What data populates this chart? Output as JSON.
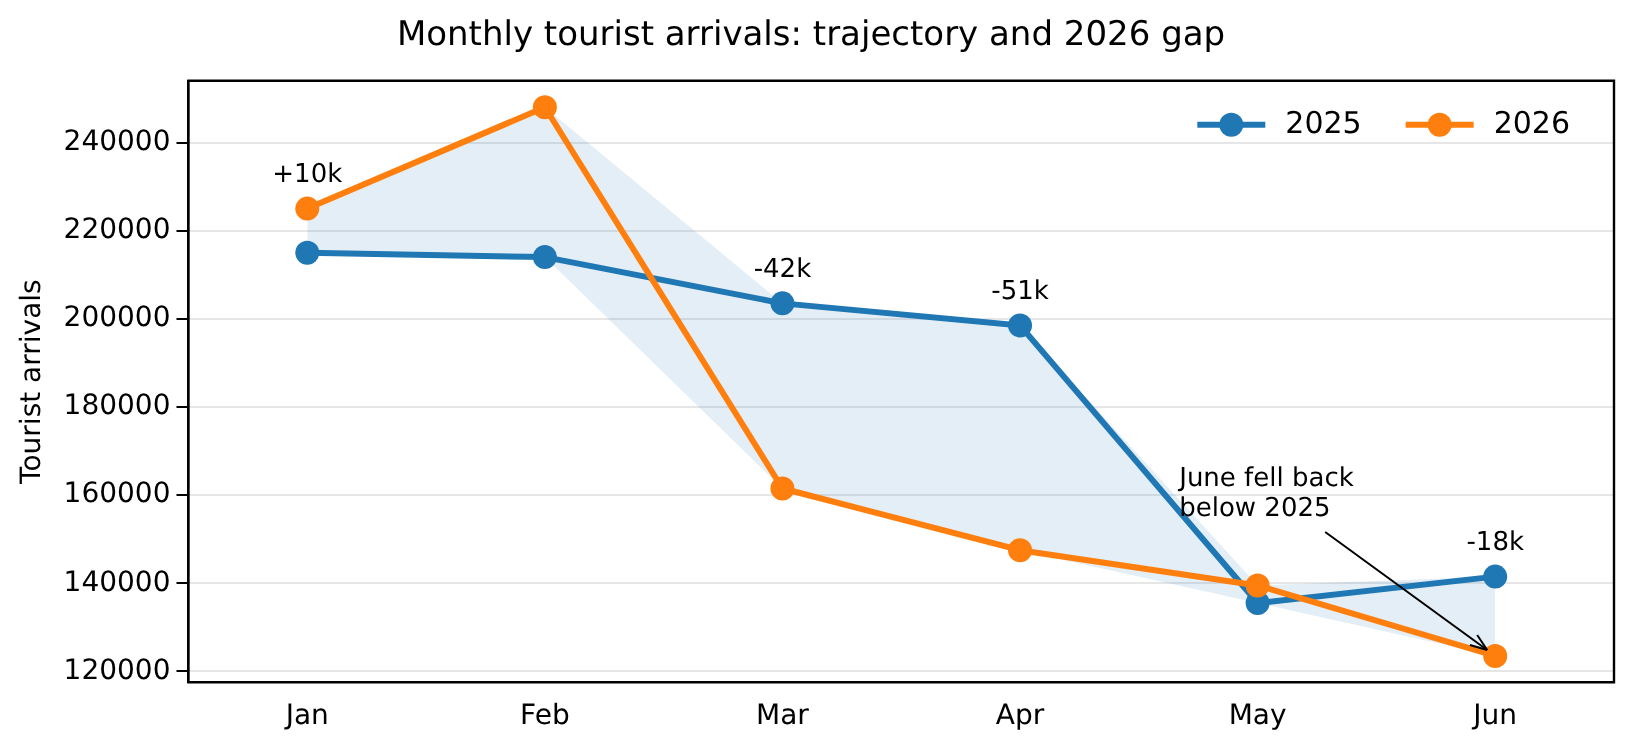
{
  "chart_data": {
    "type": "line",
    "title": "Monthly tourist arrivals: trajectory and 2026 gap",
    "ylabel": "Tourist arrivals",
    "categories": [
      "Jan",
      "Feb",
      "Mar",
      "Apr",
      "May",
      "Jun"
    ],
    "series": [
      {
        "name": "2025",
        "color": "#1f77b4",
        "values": [
          215000,
          214000,
          203500,
          198500,
          135500,
          141500
        ],
        "lower": [
          215000,
          214000,
          161500,
          147500,
          135500,
          123500
        ],
        "upper": [
          225000,
          248000,
          203500,
          198500,
          139500,
          141500
        ]
      },
      {
        "name": "2026",
        "color": "#ff7f0e",
        "values": [
          225000,
          248000,
          161500,
          147500,
          139500,
          123500
        ]
      }
    ],
    "ylim": [
      117500,
      254000
    ],
    "yticks": [
      120000,
      140000,
      160000,
      180000,
      200000,
      220000,
      240000
    ],
    "grid": "y",
    "legend": "top right",
    "marker": "circle",
    "line_style": "solid",
    "annotations": [
      {
        "text": "+10k",
        "x": "Jan",
        "y": 225000
      },
      {
        "text": "-42k",
        "x": "Mar",
        "y": 203500
      },
      {
        "text": "-51k",
        "x": "Apr",
        "y": 198500
      },
      {
        "text": "-18k",
        "x": "Jun",
        "y": 141500
      },
      {
        "text": "June fell back\nbelow 2025",
        "x": "Jun",
        "y": 123500
      }
    ]
  }
}
